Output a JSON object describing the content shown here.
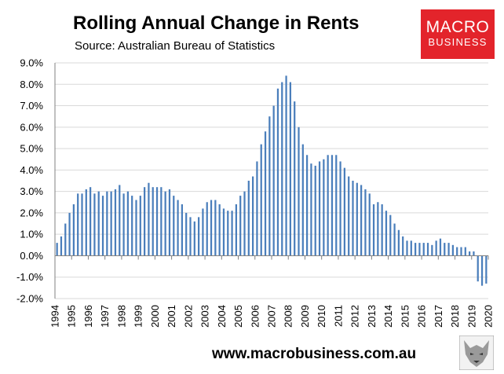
{
  "header": {
    "title": "Rolling Annual Change in Rents",
    "subtitle": "Source: Australian Bureau of Statistics"
  },
  "logo": {
    "line1": "MACRO",
    "line2": "BUSINESS",
    "color": "#e3242b"
  },
  "footer": {
    "url": "www.macrobusiness.com.au"
  },
  "colors": {
    "bar": "#4a7ebb",
    "grid": "#d9d9d9",
    "axis": "#808080"
  },
  "chart_data": {
    "type": "bar",
    "title": "Rolling Annual Change in Rents",
    "subtitle": "Source: Australian Bureau of Statistics",
    "grid": true,
    "ylim": [
      -2.0,
      9.0
    ],
    "yticks": [
      "9.0%",
      "8.0%",
      "7.0%",
      "6.0%",
      "5.0%",
      "4.0%",
      "3.0%",
      "2.0%",
      "1.0%",
      "0.0%",
      "-1.0%",
      "-2.0%"
    ],
    "xticks": [
      "1994",
      "1995",
      "1996",
      "1997",
      "1998",
      "1999",
      "2000",
      "2001",
      "2002",
      "2003",
      "2004",
      "2005",
      "2006",
      "2007",
      "2008",
      "2009",
      "2010",
      "2011",
      "2012",
      "2013",
      "2014",
      "2015",
      "2016",
      "2017",
      "2018",
      "2019",
      "2020"
    ],
    "series": [
      {
        "values": [
          0.6,
          0.9,
          1.5,
          2.0,
          2.4,
          2.9,
          2.9,
          3.1,
          3.2,
          2.9,
          3.0,
          2.8,
          3.0,
          3.0,
          3.1,
          3.3,
          2.9,
          3.0,
          2.8,
          2.6,
          2.8,
          3.2,
          3.4,
          3.2,
          3.2,
          3.2,
          3.0,
          3.1,
          2.8,
          2.6,
          2.4,
          2.0,
          1.8,
          1.6,
          1.8,
          2.2,
          2.5,
          2.6,
          2.6,
          2.4,
          2.2,
          2.1,
          2.1,
          2.4,
          2.8,
          3.0,
          3.5,
          3.7,
          4.4,
          5.2,
          5.8,
          6.5,
          7.0,
          7.8,
          8.1,
          8.4,
          8.1,
          7.2,
          6.0,
          5.2,
          4.7,
          4.3,
          4.2,
          4.4,
          4.5,
          4.7,
          4.7,
          4.7,
          4.4,
          4.1,
          3.7,
          3.5,
          3.4,
          3.3,
          3.1,
          2.9,
          2.4,
          2.5,
          2.4,
          2.1,
          1.9,
          1.5,
          1.2,
          0.9,
          0.7,
          0.7,
          0.6,
          0.6,
          0.6,
          0.6,
          0.5,
          0.7,
          0.8,
          0.6,
          0.6,
          0.5,
          0.4,
          0.4,
          0.4,
          0.2,
          0.2,
          -1.2,
          -1.4,
          -1.3
        ]
      }
    ]
  }
}
